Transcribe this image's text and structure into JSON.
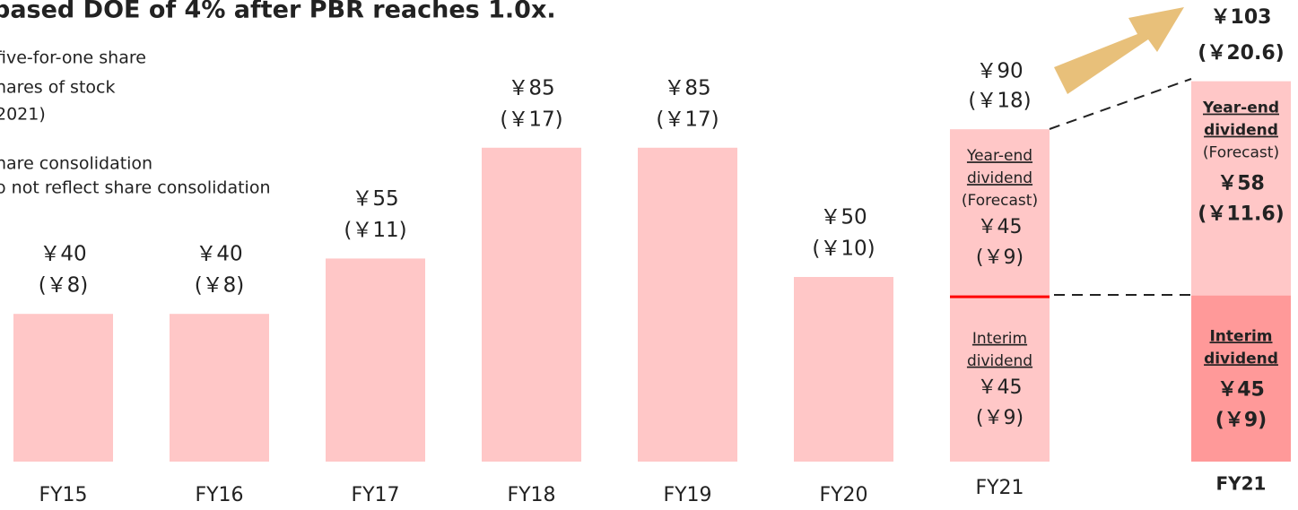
{
  "chart_data": {
    "type": "bar",
    "title": "based DOE of 4% after PBR reaches 1.0x.",
    "notes": [
      "five-for-one share",
      "hares of stock",
      "2021)",
      "hare consolidation",
      "o not reflect share consolidation"
    ],
    "categories": [
      "FY15",
      "FY16",
      "FY17",
      "FY18",
      "FY19",
      "FY20"
    ],
    "values": [
      40,
      40,
      55,
      85,
      85,
      50
    ],
    "value_labels": [
      "￥40",
      "￥40",
      "￥55",
      "￥85",
      "￥85",
      "￥50"
    ],
    "adjusted_values": [
      8,
      8,
      11,
      17,
      17,
      10
    ],
    "adjusted_labels": [
      "(￥8)",
      "(￥8)",
      "(￥11)",
      "(￥17)",
      "(￥17)",
      "(￥10)"
    ],
    "color": "#ffc7c7",
    "stacks": [
      {
        "category": "FY21",
        "bold": false,
        "total": 90,
        "total_label": "￥90",
        "total_adjusted": 18,
        "total_adjusted_label": "(￥18)",
        "segments": [
          {
            "name_lines": [
              "Interim",
              "dividend"
            ],
            "value": 45,
            "value_label": "￥45",
            "adjusted": 9,
            "adjusted_label": "(￥9)",
            "color": "#ffc7c7"
          },
          {
            "name_lines": [
              "Year-end",
              "dividend"
            ],
            "note": "(Forecast)",
            "value": 45,
            "value_label": "￥45",
            "adjusted": 9,
            "adjusted_label": "(￥9)",
            "color": "#ffc7c7"
          }
        ]
      },
      {
        "category": "FY21",
        "bold": true,
        "total": 103,
        "total_label": "￥103",
        "total_adjusted": 20.6,
        "total_adjusted_label": "(￥20.6)",
        "segments": [
          {
            "name_lines": [
              "Interim",
              "dividend"
            ],
            "value": 45,
            "value_label": "￥45",
            "adjusted": 9,
            "adjusted_label": "(￥9)",
            "color": "#ff9999"
          },
          {
            "name_lines": [
              "Year-end",
              "dividend"
            ],
            "note": "(Forecast)",
            "value": 58,
            "value_label": "￥58",
            "adjusted": 11.6,
            "adjusted_label": "(￥11.6)",
            "color": "#ffc7c7"
          }
        ]
      }
    ]
  }
}
